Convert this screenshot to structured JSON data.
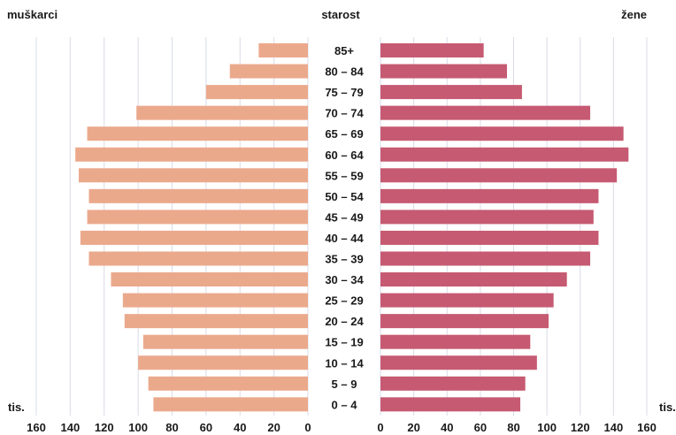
{
  "chart_data": {
    "type": "bar",
    "orientation": "horizontal",
    "layout": "population-pyramid",
    "header_left": "muškarci",
    "header_center": "starost",
    "header_right": "žene",
    "unit_left": "tis.",
    "unit_right": "tis.",
    "categories": [
      "85+",
      "80 – 84",
      "75 – 79",
      "70 – 74",
      "65 – 69",
      "60 – 64",
      "55 – 59",
      "50 – 54",
      "45 – 49",
      "40 – 44",
      "35 – 39",
      "30 – 34",
      "25 – 29",
      "20 – 24",
      "15 – 19",
      "10 – 14",
      "5 – 9",
      "0 – 4"
    ],
    "series": [
      {
        "name": "muškarci",
        "color": "#eba98c",
        "values": [
          29,
          46,
          60,
          101,
          130,
          137,
          135,
          129,
          130,
          134,
          129,
          116,
          109,
          108,
          97,
          100,
          94,
          91
        ]
      },
      {
        "name": "žene",
        "color": "#c65a72",
        "values": [
          62,
          76,
          85,
          126,
          146,
          149,
          142,
          131,
          128,
          131,
          126,
          112,
          104,
          101,
          90,
          94,
          87,
          84
        ]
      }
    ],
    "xlim": [
      0,
      160
    ],
    "ticks_left": [
      "160",
      "140",
      "120",
      "100",
      "80",
      "60",
      "40",
      "20",
      "0"
    ],
    "ticks_right": [
      "0",
      "20",
      "40",
      "60",
      "80",
      "100",
      "120",
      "140",
      "160"
    ],
    "grid": true
  }
}
